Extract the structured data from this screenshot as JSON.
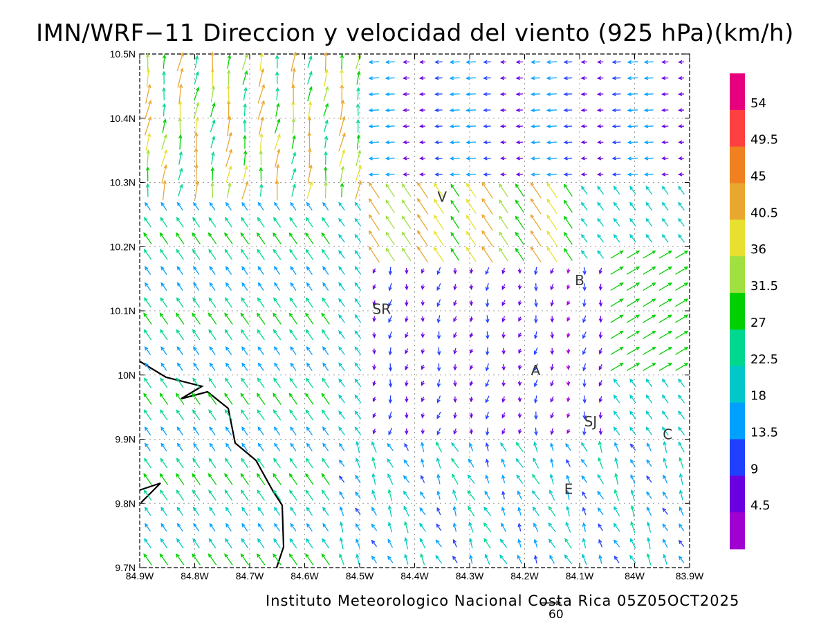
{
  "title": "IMN/WRF−11 Direccion y velocidad del viento (925 hPa)(km/h)",
  "credit": "Instituto Meteorologico Nacional Costa Rica 05Z05OCT2025",
  "reference_vector": {
    "value": "60"
  },
  "axes": {
    "x_ticks": [
      "84.9W",
      "84.8W",
      "84.7W",
      "84.6W",
      "84.5W",
      "84.4W",
      "84.3W",
      "84.2W",
      "84.1W",
      "84W",
      "83.9W"
    ],
    "y_ticks": [
      "10.5N",
      "10.4N",
      "10.3N",
      "10.2N",
      "10.1N",
      "10N",
      "9.9N",
      "9.8N",
      "9.7N"
    ],
    "lon_range": [
      -84.9,
      -83.9
    ],
    "lat_range": [
      9.7,
      10.5
    ],
    "grid": true
  },
  "colorbar": {
    "labels": [
      "54",
      "49.5",
      "45",
      "40.5",
      "36",
      "31.5",
      "27",
      "22.5",
      "18",
      "13.5",
      "9",
      "4.5"
    ],
    "colors": [
      "#e6007e",
      "#ff4040",
      "#f08020",
      "#e8a830",
      "#e8e030",
      "#a0e040",
      "#00d000",
      "#00d890",
      "#00c8c8",
      "#00a0ff",
      "#2040ff",
      "#6a00e0",
      "#a000d0"
    ]
  },
  "places": [
    {
      "name": "V",
      "lon": -84.35,
      "lat": 10.27
    },
    {
      "name": "B",
      "lon": -84.1,
      "lat": 10.14
    },
    {
      "name": "SR",
      "lon": -84.46,
      "lat": 10.095
    },
    {
      "name": "A",
      "lon": -84.18,
      "lat": 10.0
    },
    {
      "name": "SJ",
      "lon": -84.08,
      "lat": 9.92
    },
    {
      "name": "C",
      "lon": -83.94,
      "lat": 9.9
    },
    {
      "name": "E",
      "lon": -84.12,
      "lat": 9.815
    }
  ],
  "chart_data": {
    "type": "vector-field",
    "variable": "Direccion y velocidad del viento (925 hPa)",
    "units": "km/h",
    "speed_levels": [
      4.5,
      9,
      13.5,
      18,
      22.5,
      27,
      31.5,
      36,
      40.5,
      45,
      49.5,
      54
    ],
    "regions": [
      {
        "area": "west / Pacific side",
        "lon": [
          -84.9,
          -84.55
        ],
        "lat": [
          9.7,
          10.3
        ],
        "direction": "from SE (toward NW)",
        "speed_kmh": 24
      },
      {
        "area": "northwest",
        "lon": [
          -84.85,
          -84.55
        ],
        "lat": [
          10.3,
          10.5
        ],
        "direction": "from S (toward N)",
        "speed_kmh": 40
      },
      {
        "area": "northeast",
        "lon": [
          -84.5,
          -83.9
        ],
        "lat": [
          10.3,
          10.5
        ],
        "direction": "from E (toward W)",
        "speed_kmh": 12
      },
      {
        "area": "central valley",
        "lon": [
          -84.45,
          -84.05
        ],
        "lat": [
          9.9,
          10.1
        ],
        "direction": "from N (toward S)",
        "speed_kmh": 8
      },
      {
        "area": "east",
        "lon": [
          -84.05,
          -83.9
        ],
        "lat": [
          10.0,
          10.2
        ],
        "direction": "from SW (toward NE)",
        "speed_kmh": 30
      },
      {
        "area": "south",
        "lon": [
          -84.5,
          -83.9
        ],
        "lat": [
          9.7,
          9.9
        ],
        "direction": "from SE/S (toward NW/N)",
        "speed_kmh": 20
      }
    ]
  }
}
